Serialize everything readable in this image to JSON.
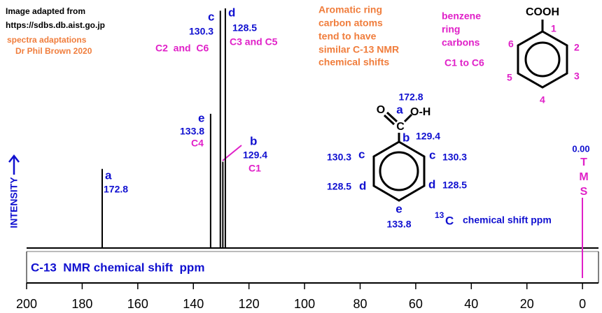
{
  "chart_data": {
    "type": "spectrum",
    "x_label": "C-13  NMR chemical shift  ppm",
    "y_label": "INTENSITY",
    "xlim": [
      200,
      -5
    ],
    "xticks": [
      200,
      180,
      160,
      140,
      120,
      100,
      80,
      60,
      40,
      20,
      0
    ],
    "x": [
      172.8,
      133.8,
      130.3,
      129.4,
      128.5
    ],
    "values": [
      33,
      56,
      99,
      36,
      100
    ],
    "color": "#000000",
    "peak_labels": [
      {
        "letter": "a",
        "shift": "172.8"
      },
      {
        "letter": "e",
        "shift": "133.8",
        "carbon": "C4"
      },
      {
        "letter": "c",
        "shift": "130.3",
        "carbon": "C2  and  C6"
      },
      {
        "letter": "b",
        "shift": "129.4",
        "carbon": "C1"
      },
      {
        "letter": "d",
        "shift": "128.5",
        "carbon": "C3 and C5"
      }
    ],
    "annotations": {
      "source": [
        "Image adapted from",
        "https://sdbs.db.aist.go.jp"
      ],
      "credit": [
        "spectra adaptations",
        "Dr Phil Brown 2020"
      ],
      "note": [
        "Aromatic ring",
        "carbon atoms",
        "tend to have",
        "similar C-13 NMR",
        "chemical shifts"
      ],
      "benzene_note": [
        "benzene",
        "ring",
        "carbons",
        "C1 to C6"
      ],
      "numbered_structure": {
        "group": "COOH",
        "positions": [
          "1",
          "2",
          "3",
          "4",
          "5",
          "6"
        ]
      },
      "labelled_structure": {
        "a_shift": "172.8",
        "a": "a",
        "oxygen": "O",
        "carbon": "C",
        "hydroxyl": "O-H",
        "b": "b",
        "b_shift": "129.4",
        "c_left_shift": "130.3",
        "c_left": "c",
        "c_right": "c",
        "c_right_shift": "130.3",
        "d_left_shift": "128.5",
        "d_left": "d",
        "d_right": "d",
        "d_right_shift": "128.5",
        "e": "e",
        "e_shift": "133.8"
      },
      "shift_note": {
        "isotope": "13",
        "element": "C",
        "text": "chemical shift ppm"
      },
      "tms": {
        "shift": "0.00",
        "letters": [
          "T",
          "M",
          "S"
        ]
      }
    }
  }
}
